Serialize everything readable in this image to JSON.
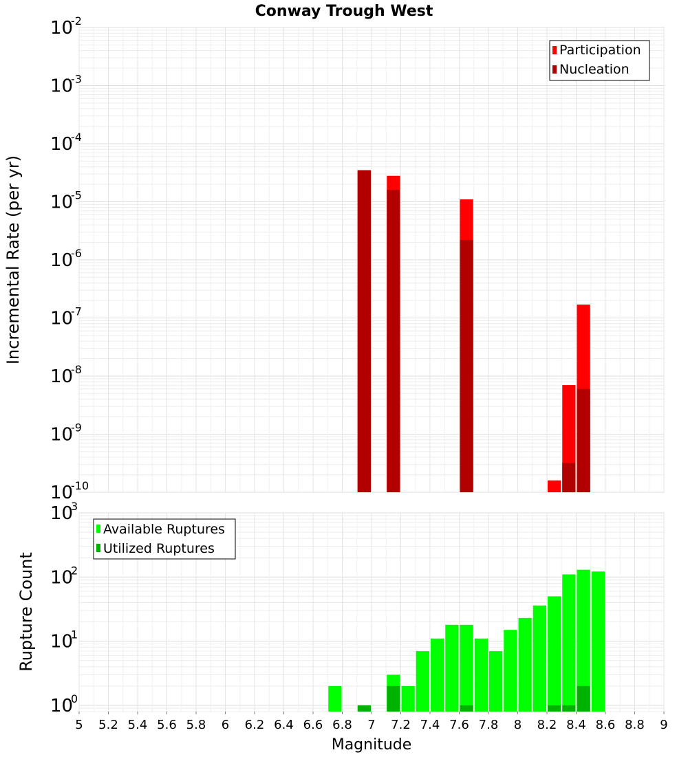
{
  "chart_data": [
    {
      "type": "bar",
      "title": "Conway Trough West",
      "xlabel": "Magnitude",
      "ylabel": "Incremental Rate (per yr)",
      "yscale": "log",
      "ylim": [
        1e-10,
        0.01
      ],
      "xlim": [
        5,
        9
      ],
      "bar_width": 0.1,
      "y_ticks": [
        {
          "base": "10",
          "exp": "-10"
        },
        {
          "base": "10",
          "exp": "-9"
        },
        {
          "base": "10",
          "exp": "-8"
        },
        {
          "base": "10",
          "exp": "-7"
        },
        {
          "base": "10",
          "exp": "-6"
        },
        {
          "base": "10",
          "exp": "-5"
        },
        {
          "base": "10",
          "exp": "-4"
        },
        {
          "base": "10",
          "exp": "-3"
        },
        {
          "base": "10",
          "exp": "-2"
        }
      ],
      "legend_position": "top-right",
      "series": [
        {
          "name": "Participation",
          "color": "#ff0000",
          "points": [
            {
              "x": 6.95,
              "y": 3.5e-05
            },
            {
              "x": 7.15,
              "y": 2.8e-05
            },
            {
              "x": 7.65,
              "y": 1.1e-05
            },
            {
              "x": 8.25,
              "y": 1.6e-10
            },
            {
              "x": 8.35,
              "y": 7e-09
            },
            {
              "x": 8.45,
              "y": 1.7e-07
            }
          ]
        },
        {
          "name": "Nucleation",
          "color": "#b20000",
          "points": [
            {
              "x": 6.95,
              "y": 3.5e-05
            },
            {
              "x": 7.15,
              "y": 1.6e-05
            },
            {
              "x": 7.65,
              "y": 2.2e-06
            },
            {
              "x": 8.35,
              "y": 3.2e-10
            },
            {
              "x": 8.45,
              "y": 6e-09
            }
          ]
        }
      ]
    },
    {
      "type": "bar",
      "title": "",
      "xlabel": "Magnitude",
      "ylabel": "Rupture Count",
      "yscale": "log",
      "ylim": [
        0.8,
        1000
      ],
      "xlim": [
        5,
        9
      ],
      "bar_width": 0.1,
      "y_ticks": [
        {
          "base": "10",
          "exp": "0",
          "value": 1
        },
        {
          "base": "10",
          "exp": "1",
          "value": 10
        },
        {
          "base": "10",
          "exp": "2",
          "value": 100
        },
        {
          "base": "10",
          "exp": "3",
          "value": 1000
        }
      ],
      "x_ticks": [
        "5",
        "5.2",
        "5.4",
        "5.6",
        "5.8",
        "6",
        "6.2",
        "6.4",
        "6.6",
        "6.8",
        "7",
        "7.2",
        "7.4",
        "7.6",
        "7.8",
        "8",
        "8.2",
        "8.4",
        "8.6",
        "8.8",
        "9"
      ],
      "legend_position": "top-left",
      "series": [
        {
          "name": "Available Ruptures",
          "color": "#00ff00",
          "points": [
            {
              "x": 6.75,
              "y": 2
            },
            {
              "x": 7.15,
              "y": 3
            },
            {
              "x": 7.25,
              "y": 2
            },
            {
              "x": 7.35,
              "y": 7
            },
            {
              "x": 7.45,
              "y": 11
            },
            {
              "x": 7.55,
              "y": 18
            },
            {
              "x": 7.65,
              "y": 18
            },
            {
              "x": 7.75,
              "y": 11
            },
            {
              "x": 7.85,
              "y": 7
            },
            {
              "x": 7.95,
              "y": 15
            },
            {
              "x": 8.05,
              "y": 23
            },
            {
              "x": 8.15,
              "y": 36
            },
            {
              "x": 8.25,
              "y": 50
            },
            {
              "x": 8.35,
              "y": 110
            },
            {
              "x": 8.45,
              "y": 130
            },
            {
              "x": 8.55,
              "y": 122
            }
          ]
        },
        {
          "name": "Utilized Ruptures",
          "color": "#00b200",
          "points": [
            {
              "x": 6.95,
              "y": 1
            },
            {
              "x": 7.15,
              "y": 2
            },
            {
              "x": 7.65,
              "y": 1
            },
            {
              "x": 8.25,
              "y": 1
            },
            {
              "x": 8.35,
              "y": 1
            },
            {
              "x": 8.45,
              "y": 2
            }
          ]
        }
      ]
    }
  ]
}
